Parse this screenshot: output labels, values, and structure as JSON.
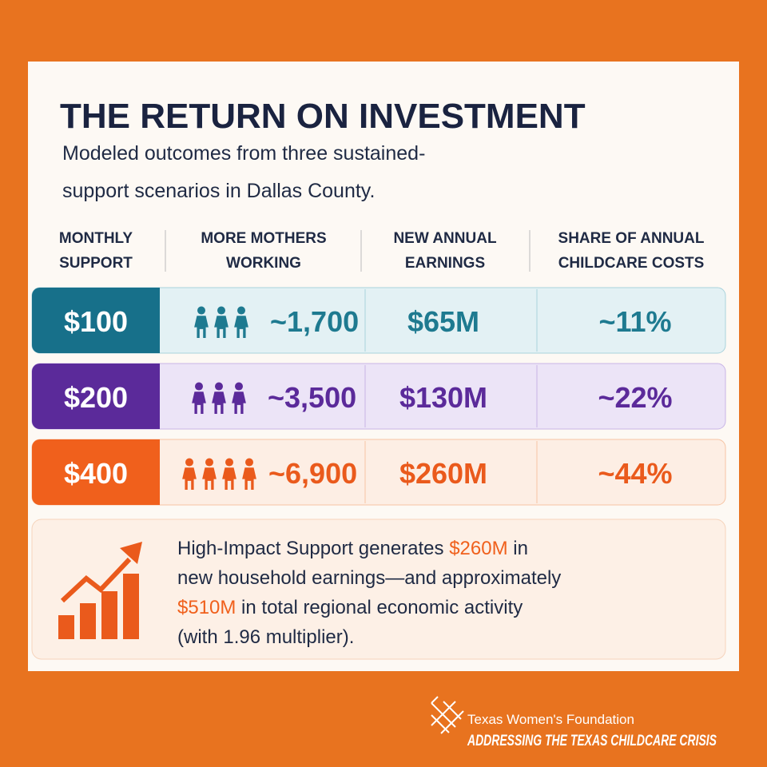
{
  "header": {
    "title": "THE RETURN ON INVESTMENT",
    "subtitle": [
      "Modeled outcomes from three sustained-",
      "support scenarios in Dallas County."
    ]
  },
  "table": {
    "columns": [
      [
        "MONTHLY",
        "SUPPORT"
      ],
      [
        "MORE MOTHERS",
        "WORKING"
      ],
      [
        "NEW ANNUAL",
        "EARNINGS"
      ],
      [
        "SHARE OF ANNUAL",
        "CHILDCARE COSTS"
      ]
    ],
    "rows": [
      [
        "$100",
        "~1,700",
        "$65M",
        "~11%"
      ],
      [
        "$200",
        "~3,500",
        "$130M",
        "~22%"
      ],
      [
        "$400",
        "~6,900",
        "$260M",
        "~44%"
      ]
    ]
  },
  "callout": {
    "lines": [
      [
        "High-Impact Support generates ",
        "$260M",
        " in"
      ],
      [
        "new household earnings—and approximately"
      ],
      [
        "$510M",
        " in total regional economic activity"
      ],
      [
        "(with 1.96 multiplier)."
      ]
    ]
  },
  "footer": {
    "organization": "Texas Women's Foundation",
    "tagline": "ADDRESSING THE TEXAS CHILDCARE CRISIS"
  }
}
